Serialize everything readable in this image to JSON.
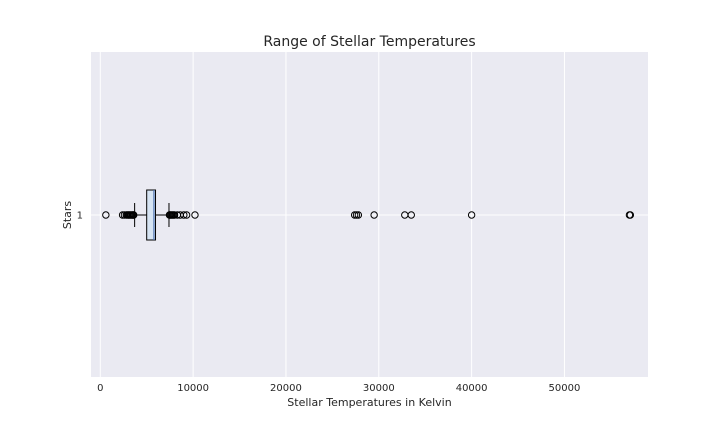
{
  "chart_data": {
    "type": "box",
    "orientation": "horizontal",
    "title": "Range of Stellar Temperatures",
    "xlabel": "Stellar Temperatures in Kelvin",
    "ylabel": "Stars",
    "xlim": [
      -1000,
      59000
    ],
    "xticks": [
      0,
      10000,
      20000,
      30000,
      40000,
      50000
    ],
    "ytick_labels": [
      "1"
    ],
    "grid": true,
    "box": {
      "category": "1",
      "whisker_low": 3700,
      "q1": 5000,
      "median": 5780,
      "q3": 5950,
      "whisker_high": 7400
    },
    "outliers": [
      600,
      2400,
      2600,
      2800,
      2900,
      3000,
      3100,
      3200,
      3300,
      3400,
      3500,
      3550,
      3600,
      7450,
      7500,
      7600,
      7700,
      7800,
      7900,
      8000,
      8300,
      8600,
      9000,
      9300,
      10200,
      27400,
      27600,
      27800,
      29500,
      32800,
      33500,
      40000,
      57000,
      57100
    ],
    "colors": {
      "plot_bg": "#eaeaf2",
      "grid": "#ffffff",
      "box_fill": "#d6e4f3",
      "box_edge": "#000000",
      "median": "#4c72b0",
      "text": "#262626"
    }
  }
}
